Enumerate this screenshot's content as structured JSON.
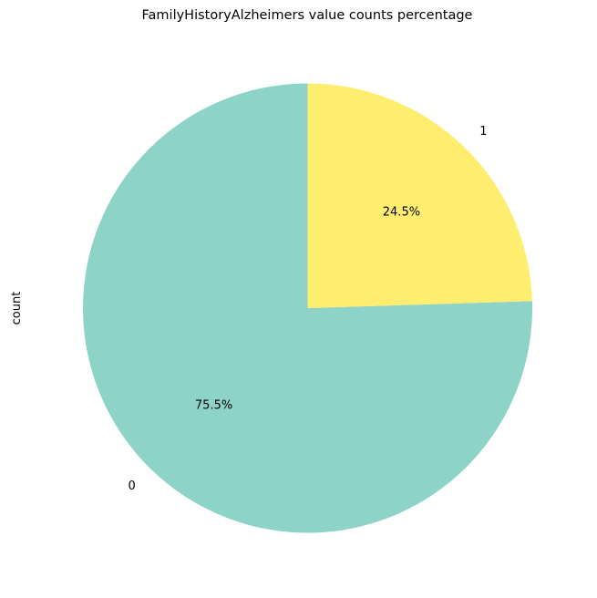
{
  "chart_data": {
    "type": "pie",
    "title": "FamilyHistoryAlzheimers value counts percentage",
    "ylabel": "count",
    "slices": [
      {
        "label": "0",
        "percent": 75.5,
        "pct_label": "75.5%",
        "color": "#8dd3c7"
      },
      {
        "label": "1",
        "percent": 24.5,
        "pct_label": "24.5%",
        "color": "#ffed6f"
      }
    ],
    "start_angle_deg": 90,
    "direction": "counterclockwise"
  }
}
